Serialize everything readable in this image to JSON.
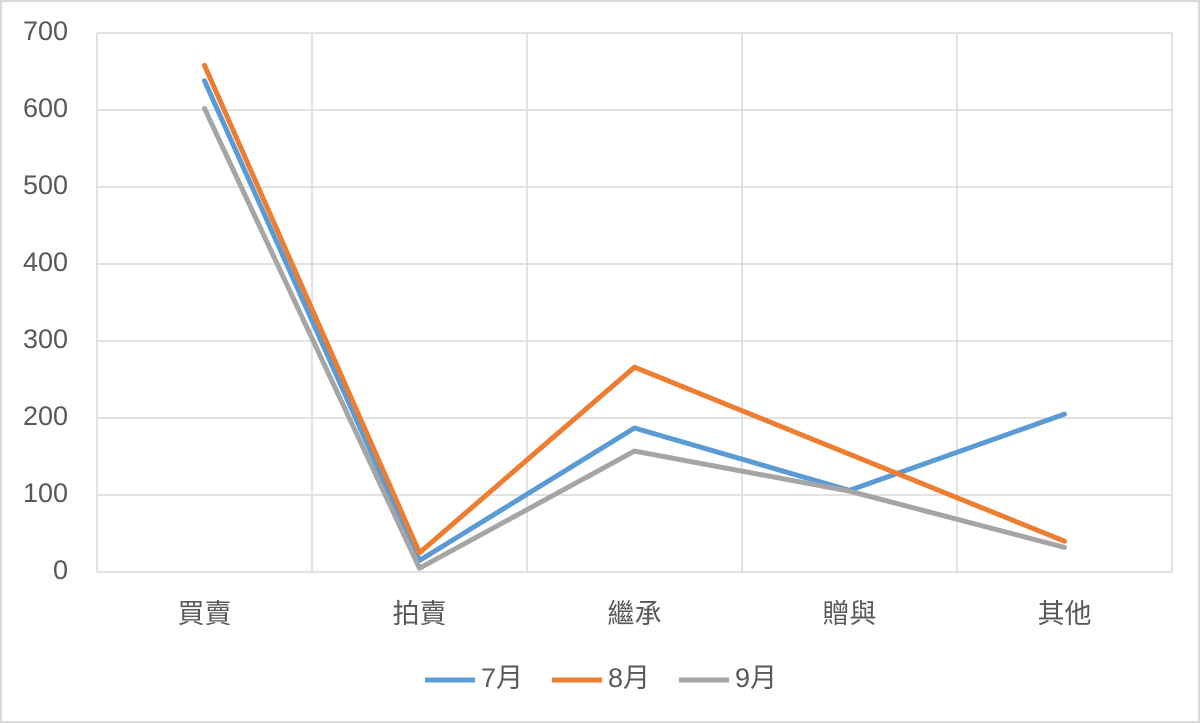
{
  "chart_data": {
    "type": "line",
    "categories": [
      "買賣",
      "拍賣",
      "繼承",
      "贈與",
      "其他"
    ],
    "series": [
      {
        "name": "7月",
        "color": "#5b9bd5",
        "values": [
          638,
          15,
          187,
          106,
          205
        ]
      },
      {
        "name": "8月",
        "color": "#ed7d31",
        "values": [
          658,
          25,
          266,
          153,
          40
        ]
      },
      {
        "name": "9月",
        "color": "#a5a5a5",
        "values": [
          602,
          5,
          157,
          105,
          32
        ]
      }
    ],
    "ylim": [
      0,
      700
    ],
    "yticks": [
      0,
      100,
      200,
      300,
      400,
      500,
      600,
      700
    ],
    "grid": true,
    "legend": "bottom"
  }
}
